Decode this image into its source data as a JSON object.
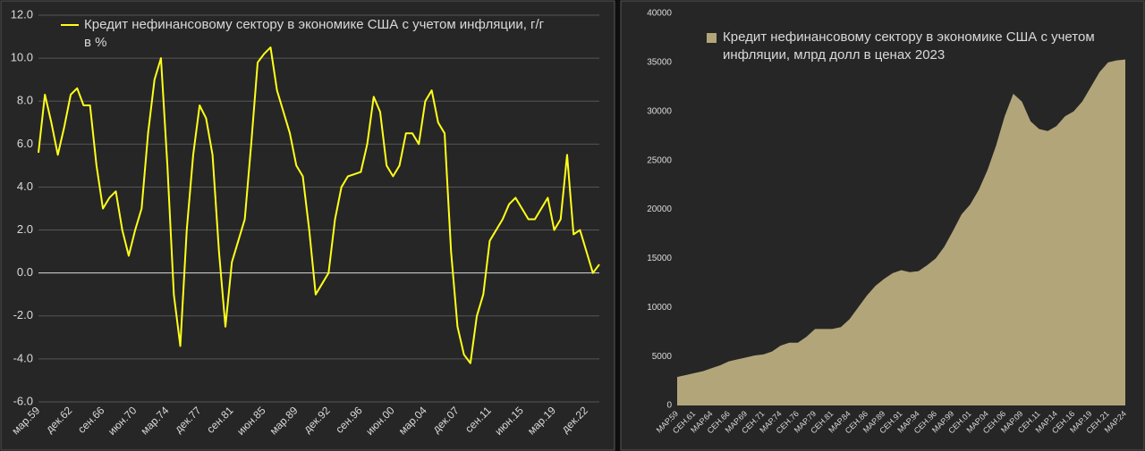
{
  "chart_data": [
    {
      "type": "line",
      "categories": [
        "мар.59",
        null,
        null,
        null,
        null,
        "дек.62",
        null,
        null,
        null,
        null,
        "сен.66",
        null,
        null,
        null,
        null,
        "июн.70",
        null,
        null,
        null,
        null,
        "мар.74",
        null,
        null,
        null,
        null,
        "дек.77",
        null,
        null,
        null,
        null,
        "сен.81",
        null,
        null,
        null,
        null,
        "июн.85",
        null,
        null,
        null,
        null,
        "мар.89",
        null,
        null,
        null,
        null,
        "дек.92",
        null,
        null,
        null,
        null,
        "сен.96",
        null,
        null,
        null,
        null,
        "июн.00",
        null,
        null,
        null,
        null,
        "мар.04",
        null,
        null,
        null,
        null,
        "дек.07",
        null,
        null,
        null,
        null,
        "сен.11",
        null,
        null,
        null,
        null,
        "июн.15",
        null,
        null,
        null,
        null,
        "мар.19",
        null,
        null,
        null,
        null,
        "дек.22",
        null,
        null
      ],
      "series": [
        {
          "name": "Кредит нефинансовому сектору в экономике США с учетом инфляции, г/г в %",
          "color": "#ffff1a",
          "values": [
            5.6,
            8.3,
            7.0,
            5.5,
            6.8,
            8.3,
            8.6,
            7.8,
            7.8,
            5.0,
            3.0,
            3.5,
            3.8,
            2.0,
            0.8,
            2.0,
            3.0,
            6.5,
            9.0,
            10.0,
            5.0,
            -1.0,
            -3.4,
            2.0,
            5.5,
            7.8,
            7.2,
            5.5,
            1.0,
            -2.5,
            0.5,
            1.5,
            2.5,
            6.0,
            9.8,
            10.2,
            10.5,
            8.5,
            7.5,
            6.5,
            5.0,
            4.5,
            2.0,
            -1.0,
            -0.5,
            0.0,
            2.5,
            4.0,
            4.5,
            4.6,
            4.7,
            6.0,
            8.2,
            7.5,
            5.0,
            4.5,
            5.0,
            6.5,
            6.5,
            6.0,
            8.0,
            8.5,
            7.0,
            6.5,
            1.0,
            -2.5,
            -3.8,
            -4.2,
            -2.0,
            -1.0,
            1.5,
            2.0,
            2.5,
            3.2,
            3.5,
            3.0,
            2.5,
            2.5,
            3.0,
            3.5,
            2.0,
            2.5,
            5.5,
            1.8,
            2.0,
            1.0,
            0.0,
            0.4
          ]
        }
      ],
      "ylim": [
        -6,
        12
      ],
      "yticks": [
        {
          "value": -6,
          "label": "-6.0"
        },
        {
          "value": -4,
          "label": "-4.0"
        },
        {
          "value": -2,
          "label": "-2.0"
        },
        {
          "value": 0,
          "label": "0.0"
        },
        {
          "value": 2,
          "label": "2.0"
        },
        {
          "value": 4,
          "label": "4.0"
        },
        {
          "value": 6,
          "label": "6.0"
        },
        {
          "value": 8,
          "label": "8.0"
        },
        {
          "value": 10,
          "label": "10.0"
        },
        {
          "value": 12,
          "label": "12.0"
        }
      ],
      "grid": true
    },
    {
      "type": "area",
      "categories": [
        "МАР.59",
        null,
        "СЕН.61",
        null,
        "МАР.64",
        null,
        "СЕН.66",
        null,
        "МАР.69",
        null,
        "СЕН.71",
        null,
        "МАР.74",
        null,
        "СЕН.76",
        null,
        "МАР.79",
        null,
        "СЕН.81",
        null,
        "МАР.84",
        null,
        "СЕН.86",
        null,
        "МАР.89",
        null,
        "СЕН.91",
        null,
        "МАР.94",
        null,
        "СЕН.96",
        null,
        "МАР.99",
        null,
        "СЕН.01",
        null,
        "МАР.04",
        null,
        "СЕН.06",
        null,
        "МАР.09",
        null,
        "СЕН.11",
        null,
        "МАР.14",
        null,
        "СЕН.16",
        null,
        "МАР.19",
        null,
        "СЕН.21",
        null,
        "МАР.24"
      ],
      "series": [
        {
          "name": "Кредит нефинансовому сектору в экономике США с учетом инфляции, млрд долл в ценах 2023",
          "color": "#b3a57a",
          "values": [
            2900,
            3100,
            3300,
            3500,
            3800,
            4100,
            4500,
            4700,
            4900,
            5100,
            5200,
            5500,
            6100,
            6400,
            6400,
            7000,
            7800,
            7800,
            7800,
            8000,
            8800,
            10000,
            11200,
            12200,
            12900,
            13500,
            13800,
            13600,
            13700,
            14300,
            15000,
            16200,
            17800,
            19500,
            20500,
            22000,
            24000,
            26500,
            29500,
            31800,
            31000,
            29000,
            28200,
            28000,
            28500,
            29500,
            30000,
            31000,
            32500,
            34000,
            35000,
            35200,
            35300
          ]
        }
      ],
      "ylim": [
        0,
        40000
      ],
      "yticks": [
        0,
        5000,
        10000,
        15000,
        20000,
        25000,
        30000,
        35000,
        40000
      ],
      "grid": false
    }
  ]
}
